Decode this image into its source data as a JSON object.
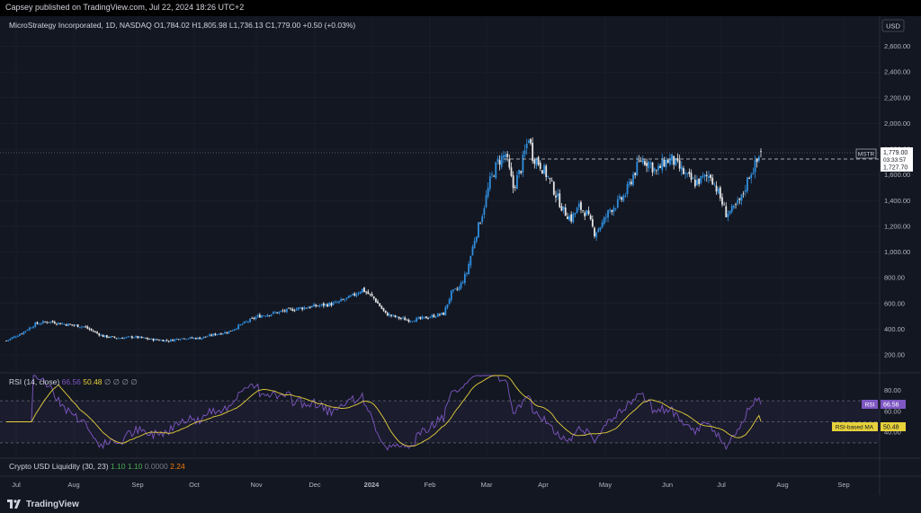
{
  "publish_line": "Capsey published on TradingView.com, Jul 22, 2024 18:26 UTC+2",
  "header": {
    "symbol": "MicroStrategy Incorporated, 1D, NASDAQ",
    "open_label": "O",
    "open": "1,784.02",
    "high_label": "H",
    "high": "1,805.98",
    "low_label": "L",
    "low": "1,736.13",
    "close_label": "C",
    "close": "1,779.00",
    "change": "+0.50 (+0.03%)"
  },
  "currency": "USD",
  "price_tag": {
    "ticker": "MSTR",
    "price": "1,779.00",
    "countdown": "03:33:57",
    "dashed": "1,727.70"
  },
  "rsi_header": {
    "title": "RSI (14, close)",
    "value": "66.56",
    "ma_value": "50.48",
    "extra": "∅ ∅ ∅ ∅"
  },
  "rsi_tags": {
    "rsi_label": "RSI",
    "rsi_value": "66.56",
    "ma_label": "RSI-based MA",
    "ma_value": "50.48"
  },
  "liquidity_header": {
    "title": "Crypto USD Liquidity (30, 23)",
    "v1": "1.10",
    "v2": "1.10",
    "v3": "0.0000",
    "v4": "2.24"
  },
  "footer": {
    "brand": "TradingView"
  },
  "colors": {
    "bg": "#131722",
    "up": "#2f8fe0",
    "down": "#e8e8e8",
    "rsi": "#7e57c2",
    "rsi_ma": "#e6d13a",
    "grid": "#1f2433"
  },
  "chart_data": [
    {
      "type": "candlestick",
      "title": "MicroStrategy Incorporated, 1D, NASDAQ",
      "x_ticks": [
        "Jul",
        "Aug",
        "Sep",
        "Oct",
        "Nov",
        "Dec",
        "2024",
        "Feb",
        "Mar",
        "Apr",
        "May",
        "Jun",
        "Jul",
        "Aug",
        "Sep"
      ],
      "y_ticks": [
        "200.00",
        "400.00",
        "600.00",
        "800.00",
        "1,000.00",
        "1,200.00",
        "1,400.00",
        "1,600.00",
        "1,800.00",
        "2,000.00",
        "2,200.00",
        "2,400.00",
        "2,600.00"
      ],
      "ylim": [
        40,
        2750
      ],
      "series": [
        {
          "name": "MSTR",
          "anchors": [
            [
              0,
              310
            ],
            [
              8,
              370
            ],
            [
              15,
              440
            ],
            [
              22,
              460
            ],
            [
              30,
              440
            ],
            [
              40,
              420
            ],
            [
              50,
              345
            ],
            [
              58,
              330
            ],
            [
              66,
              340
            ],
            [
              75,
              320
            ],
            [
              84,
              310
            ],
            [
              90,
              330
            ],
            [
              100,
              330
            ],
            [
              108,
              360
            ],
            [
              115,
              380
            ],
            [
              122,
              440
            ],
            [
              130,
              500
            ],
            [
              140,
              530
            ],
            [
              150,
              560
            ],
            [
              160,
              580
            ],
            [
              170,
              600
            ],
            [
              178,
              650
            ],
            [
              184,
              710
            ],
            [
              190,
              640
            ],
            [
              196,
              520
            ],
            [
              202,
              490
            ],
            [
              208,
              470
            ],
            [
              214,
              480
            ],
            [
              220,
              500
            ],
            [
              226,
              520
            ],
            [
              230,
              680
            ],
            [
              234,
              720
            ],
            [
              238,
              840
            ],
            [
              242,
              1100
            ],
            [
              246,
              1300
            ],
            [
              250,
              1550
            ],
            [
              254,
              1700
            ],
            [
              258,
              1760
            ],
            [
              262,
              1500
            ],
            [
              266,
              1650
            ],
            [
              270,
              1900
            ],
            [
              272,
              1750
            ],
            [
              276,
              1680
            ],
            [
              280,
              1580
            ],
            [
              284,
              1450
            ],
            [
              288,
              1320
            ],
            [
              292,
              1260
            ],
            [
              296,
              1350
            ],
            [
              300,
              1300
            ],
            [
              304,
              1150
            ],
            [
              308,
              1220
            ],
            [
              312,
              1330
            ],
            [
              316,
              1380
            ],
            [
              320,
              1450
            ],
            [
              324,
              1600
            ],
            [
              328,
              1720
            ],
            [
              332,
              1700
            ],
            [
              336,
              1620
            ],
            [
              340,
              1700
            ],
            [
              344,
              1720
            ],
            [
              348,
              1650
            ],
            [
              352,
              1580
            ],
            [
              356,
              1540
            ],
            [
              360,
              1570
            ],
            [
              364,
              1600
            ],
            [
              368,
              1460
            ],
            [
              372,
              1300
            ],
            [
              376,
              1330
            ],
            [
              380,
              1420
            ],
            [
              384,
              1600
            ],
            [
              388,
              1700
            ],
            [
              390,
              1779
            ]
          ]
        }
      ]
    },
    {
      "type": "line",
      "title": "RSI (14, close)",
      "y_ticks": [
        "80.00",
        "60.00",
        "40.00"
      ],
      "levels": [
        70,
        50,
        30
      ],
      "ylim": [
        18,
        94
      ],
      "series": [
        {
          "name": "RSI",
          "last": 66.56
        },
        {
          "name": "RSI-based MA",
          "last": 50.48
        }
      ]
    }
  ]
}
